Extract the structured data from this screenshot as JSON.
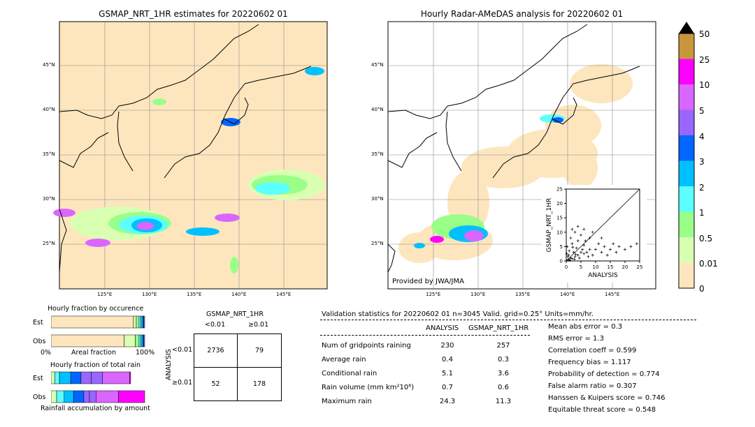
{
  "left_map": {
    "title": "GSMAP_NRT_1HR estimates for 20220602 01",
    "lat_labels": [
      "45°N",
      "40°N",
      "35°N",
      "30°N",
      "25°N"
    ],
    "lon_labels": [
      "125°E",
      "130°E",
      "135°E",
      "140°E",
      "145°E"
    ]
  },
  "right_map": {
    "title": "Hourly Radar-AMeDAS analysis for 20220602 01",
    "lat_labels": [
      "45°N",
      "40°N",
      "35°N",
      "30°N",
      "25°N"
    ],
    "lon_labels": [
      "125°E",
      "130°E",
      "135°E",
      "140°E",
      "145°E"
    ],
    "credit": "Provided by JWA/JMA"
  },
  "colorbar": {
    "labels": [
      "50",
      "25",
      "10",
      "5",
      "4",
      "3",
      "2",
      "1",
      "0.5",
      "0.01",
      "0"
    ],
    "colors": [
      "#c8963c",
      "#ff00ff",
      "#d966ff",
      "#9966ff",
      "#0066ff",
      "#00c0ff",
      "#5cffff",
      "#99ff88",
      "#d9ffb3",
      "#fde6be"
    ],
    "over_color": "#000000"
  },
  "fraction_occurrence": {
    "title": "Hourly fraction by occurence",
    "row_labels": [
      "Est",
      "Obs"
    ],
    "axis_left": "0%",
    "axis_mid": "Areal fraction",
    "axis_right": "100%"
  },
  "fraction_total": {
    "title": "Hourly fraction of total rain",
    "row_labels": [
      "Est",
      "Obs"
    ],
    "footer": "Rainfall accumulation by amount"
  },
  "contingency": {
    "title": "GSMAP_NRT_1HR",
    "col_headers": [
      "<0.01",
      "≥0.01"
    ],
    "side_label": "ANALYSIS",
    "row_headers": [
      "<0.01",
      "≥0.01"
    ],
    "cells": [
      [
        "2736",
        "79"
      ],
      [
        "52",
        "178"
      ]
    ]
  },
  "validation": {
    "header": "Validation statistics for 20220602 01  n=3045 Valid. grid=0.25° Units=mm/hr.",
    "col_headers": [
      "ANALYSIS",
      "GSMAP_NRT_1HR"
    ],
    "rows": [
      {
        "label": "Num of gridpoints raining",
        "a": "230",
        "g": "257"
      },
      {
        "label": "Average rain",
        "a": "0.4",
        "g": "0.3"
      },
      {
        "label": "Conditional rain",
        "a": "5.1",
        "g": "3.6"
      },
      {
        "label": "Rain volume (mm km²10⁶)",
        "a": "0.7",
        "g": "0.6"
      },
      {
        "label": "Maximum rain",
        "a": "24.3",
        "g": "11.3"
      }
    ],
    "scores": [
      "Mean abs error =    0.3",
      "RMS error =    1.3",
      "Correlation coeff =  0.599",
      "Frequency bias =  1.117",
      "Probability of detection =  0.774",
      "False alarm ratio =  0.307",
      "Hanssen & Kuipers score =  0.746",
      "Equitable threat score =  0.548"
    ]
  },
  "chart_data": [
    {
      "type": "scatter",
      "title": "",
      "xlabel": "ANALYSIS",
      "ylabel": "GSMAP_NRT_1HR",
      "xlim": [
        0,
        25
      ],
      "ylim": [
        0,
        25
      ],
      "x_ticks": [
        "0",
        "5",
        "10",
        "15",
        "20",
        "25"
      ],
      "y_ticks": [
        "0",
        "5",
        "10",
        "15",
        "20",
        "25"
      ],
      "points": [
        [
          0.5,
          0.3
        ],
        [
          1,
          0.5
        ],
        [
          1.5,
          1
        ],
        [
          2,
          0.8
        ],
        [
          0.8,
          2
        ],
        [
          3,
          1.5
        ],
        [
          2.5,
          3
        ],
        [
          4,
          2
        ],
        [
          3.5,
          4.5
        ],
        [
          5,
          3
        ],
        [
          6,
          2.5
        ],
        [
          1,
          3.5
        ],
        [
          0.3,
          5
        ],
        [
          2,
          6
        ],
        [
          7,
          3
        ],
        [
          8,
          4
        ],
        [
          4,
          7
        ],
        [
          9,
          2
        ],
        [
          1.5,
          8
        ],
        [
          6,
          5.5
        ],
        [
          10,
          4
        ],
        [
          12,
          3
        ],
        [
          5,
          9
        ],
        [
          3,
          10
        ],
        [
          11,
          6
        ],
        [
          13,
          5
        ],
        [
          14,
          2
        ],
        [
          8,
          8
        ],
        [
          15,
          4
        ],
        [
          17,
          3
        ],
        [
          16,
          6
        ],
        [
          18,
          5
        ],
        [
          20,
          4
        ],
        [
          22,
          5
        ],
        [
          24,
          6
        ],
        [
          9,
          10
        ],
        [
          2,
          11
        ],
        [
          6,
          11
        ],
        [
          4,
          12
        ],
        [
          12,
          8
        ],
        [
          0.5,
          1.5
        ],
        [
          1.2,
          0.2
        ],
        [
          2.8,
          0.6
        ],
        [
          0.2,
          2.5
        ],
        [
          3.2,
          2.3
        ],
        [
          4.5,
          1
        ],
        [
          5.5,
          4
        ],
        [
          7.5,
          1.5
        ],
        [
          2.2,
          4.8
        ],
        [
          6.5,
          7
        ]
      ]
    },
    {
      "type": "bar",
      "title": "Hourly fraction by occurence",
      "categories": [
        "Est",
        "Obs"
      ],
      "series": [
        {
          "values": [
            0.88,
            0.78
          ]
        },
        {
          "values": [
            0.03,
            0.12
          ]
        },
        {
          "values": [
            0.03,
            0.04
          ]
        },
        {
          "values": [
            0.02,
            0.02
          ]
        },
        {
          "values": [
            0.02,
            0.02
          ]
        },
        {
          "values": [
            0.01,
            0.01
          ]
        },
        {
          "values": [
            0.01,
            0.01
          ]
        }
      ]
    },
    {
      "type": "bar",
      "title": "Hourly fraction of total rain",
      "categories": [
        "Est",
        "Obs"
      ],
      "series": [
        {
          "values": [
            0.04,
            0.06
          ]
        },
        {
          "values": [
            0.05,
            0.08
          ]
        },
        {
          "values": [
            0.12,
            0.1
          ]
        },
        {
          "values": [
            0.11,
            0.11
          ]
        },
        {
          "values": [
            0.11,
            0.06
          ]
        },
        {
          "values": [
            0.12,
            0.07
          ]
        },
        {
          "values": [
            0.29,
            0.24
          ]
        },
        {
          "values": [
            0.01,
            0.28
          ]
        }
      ]
    }
  ]
}
